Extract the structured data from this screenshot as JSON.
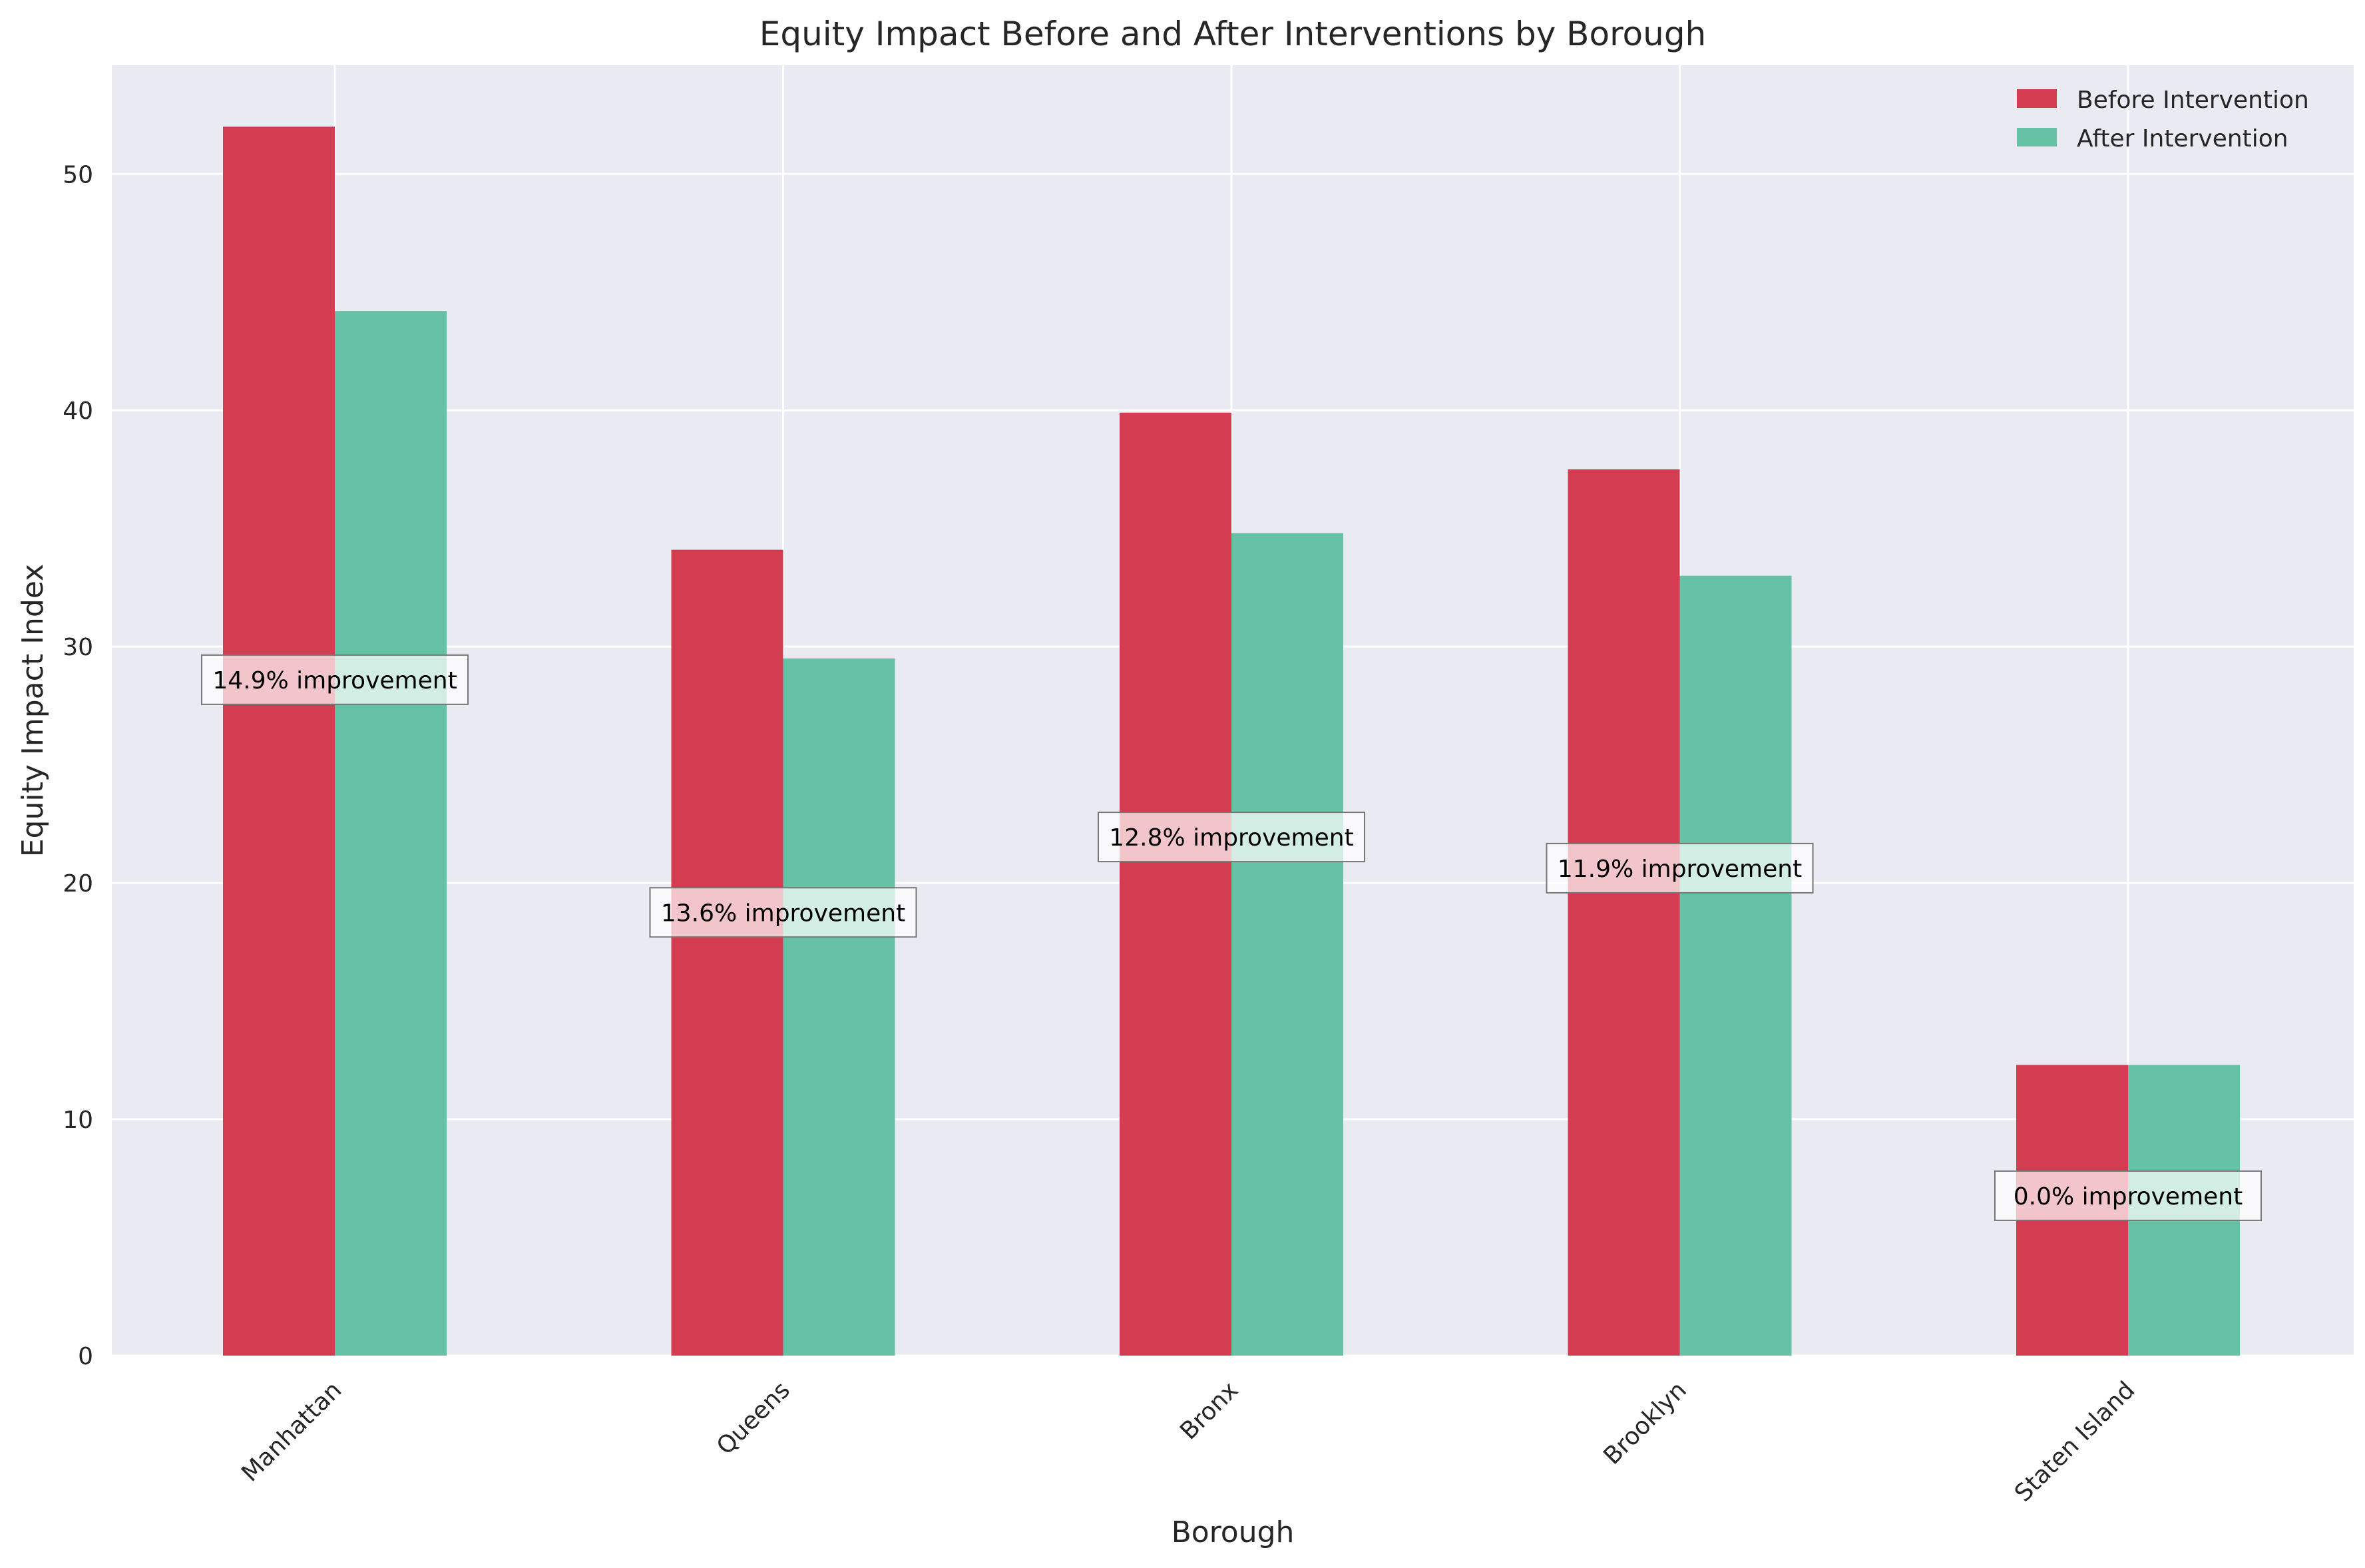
{
  "chart_data": {
    "type": "bar",
    "title": "Equity Impact Before and After Interventions by Borough",
    "xlabel": "Borough",
    "ylabel": "Equity Impact Index",
    "categories": [
      "Manhattan",
      "Queens",
      "Bronx",
      "Brooklyn",
      "Staten Island"
    ],
    "series": [
      {
        "name": "Before Intervention",
        "color": "#d43d51",
        "values": [
          52.0,
          34.1,
          39.9,
          37.5,
          12.3
        ]
      },
      {
        "name": "After Intervention",
        "color": "#66c2a5",
        "values": [
          44.2,
          29.5,
          34.8,
          33.0,
          12.3
        ]
      }
    ],
    "annotations": [
      "14.9% improvement",
      "13.6% improvement",
      "12.8% improvement",
      "11.9% improvement",
      "0.0% improvement"
    ],
    "yticks": [
      "0",
      "10",
      "20",
      "30",
      "40",
      "50"
    ],
    "ylim": [
      0,
      54.6
    ],
    "grid": true,
    "legend_position": "top-right",
    "colors": {
      "background": "#eaeaf2",
      "grid": "#ffffff",
      "text": "#262626"
    }
  }
}
